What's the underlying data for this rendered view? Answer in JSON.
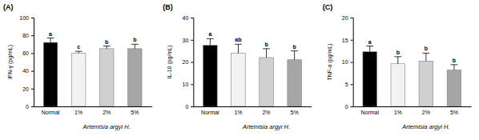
{
  "chart_data": [
    {
      "type": "bar",
      "title": "(A)",
      "y_label": "IFN-γ (pg/mL)",
      "x_label": "Artemisia argyi H.",
      "categories": [
        "Normal",
        "1%",
        "2%",
        "5%"
      ],
      "values": [
        72,
        60,
        65,
        65
      ],
      "errors": [
        5,
        2,
        3,
        5
      ],
      "annotations": [
        "a",
        "c",
        "b",
        "b"
      ],
      "colors": [
        "#000000",
        "#f2f2f2",
        "#d0d0d0",
        "#a6a6a6"
      ],
      "ylim": [
        0,
        100
      ],
      "yticks": [
        0,
        20,
        40,
        60,
        80,
        100
      ]
    },
    {
      "type": "bar",
      "title": "(B)",
      "y_label": "IL-10 (pg/mL)",
      "x_label": "Artemisia argyi H.",
      "categories": [
        "Normal",
        "1%",
        "2%",
        "5%"
      ],
      "values": [
        27.5,
        24,
        22,
        21
      ],
      "errors": [
        3,
        4,
        4,
        4
      ],
      "annotations": [
        "a",
        "ab",
        "b",
        "b"
      ],
      "colors": [
        "#000000",
        "#f2f2f2",
        "#d0d0d0",
        "#a6a6a6"
      ],
      "ylim": [
        0,
        40
      ],
      "yticks": [
        0,
        10,
        20,
        30,
        40
      ]
    },
    {
      "type": "bar",
      "title": "(C)",
      "y_label": "TNF-α (pg/mL)",
      "x_label": "Artemisia argyi H.",
      "categories": [
        "Normal",
        "1%",
        "2%",
        "5%"
      ],
      "values": [
        12.3,
        9.6,
        10.2,
        8.2
      ],
      "errors": [
        1.3,
        1.6,
        1.8,
        1.2
      ],
      "annotations": [
        "a",
        "b",
        "b",
        "b"
      ],
      "colors": [
        "#000000",
        "#f2f2f2",
        "#d0d0d0",
        "#a6a6a6"
      ],
      "ylim": [
        0,
        20
      ],
      "yticks": [
        0,
        5,
        10,
        15,
        20
      ]
    }
  ]
}
